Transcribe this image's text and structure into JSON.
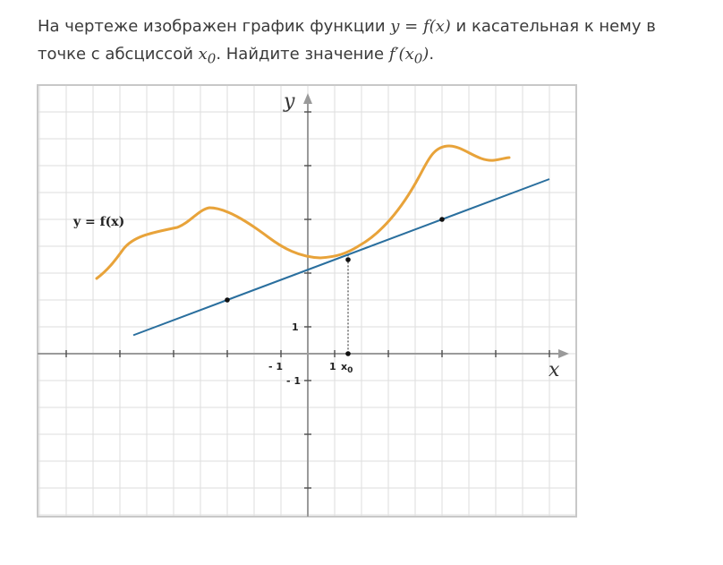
{
  "problem": {
    "text_1": "На чертеже изображен график функции ",
    "y_eq_fx": "y = f(x)",
    "text_2": " и касательная к нему в точке с абсциссой ",
    "x0": "x",
    "x0_sub": "0",
    "text_3": ". Найдите значение ",
    "fprime": "f′(x",
    "fprime_sub": "0",
    "fprime_end": ")",
    "text_4": "."
  },
  "figure": {
    "y_axis_label": "y",
    "x_axis_label": "x",
    "function_label": "y = f(x)",
    "tick_x_neg1": "- 1",
    "tick_x_1": "1",
    "tick_x0": "x",
    "tick_x0_sub": "0",
    "tick_y_1": "1",
    "tick_y_neg1": "- 1",
    "colors": {
      "curve": "#e8a33a",
      "tangent": "#2a6f9e",
      "grid": "#dddddd",
      "axis": "#9a9a9a",
      "frame": "#c8c8c8"
    },
    "x_range": [
      -10,
      10
    ],
    "y_range": [
      -6,
      10
    ],
    "x0_value": 1.5,
    "tangent_points": [
      [
        -3,
        2
      ],
      [
        1.5,
        3.5
      ],
      [
        5,
        5
      ]
    ],
    "tangent_extent": [
      -6.5,
      9
    ],
    "grid": true
  }
}
